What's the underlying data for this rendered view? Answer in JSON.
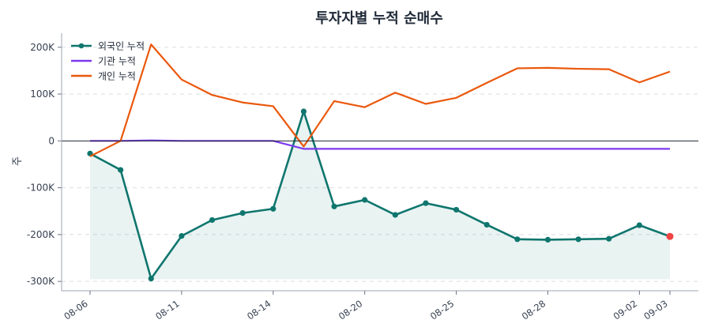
{
  "chart_data": {
    "type": "line",
    "title": "투자자별 누적 순매수",
    "xlabel": "",
    "ylabel": "주",
    "ylim": [
      -320000,
      230000
    ],
    "yticks": [
      200000,
      100000,
      0,
      -100000,
      -200000,
      -300000
    ],
    "ytick_labels": [
      "200K",
      "100K",
      "0",
      "-100K",
      "-200K",
      "-300K"
    ],
    "x": [
      "08-06",
      "08-07",
      "08-08",
      "08-11",
      "08-12",
      "08-13",
      "08-14",
      "08-15",
      "08-18",
      "08-20",
      "08-21",
      "08-22",
      "08-25",
      "08-26",
      "08-27",
      "08-28",
      "08-29",
      "09-01",
      "09-02",
      "09-03"
    ],
    "xtick_labels": [
      {
        "index": 0,
        "label": "08-06"
      },
      {
        "index": 3,
        "label": "08-11"
      },
      {
        "index": 6,
        "label": "08-14"
      },
      {
        "index": 9,
        "label": "08-20"
      },
      {
        "index": 12,
        "label": "08-25"
      },
      {
        "index": 15,
        "label": "08-28"
      },
      {
        "index": 18,
        "label": "09-02"
      },
      {
        "index": 19,
        "label": "09-03"
      }
    ],
    "series": [
      {
        "name": "외국인 누적",
        "color": "#0f766e",
        "markers": true,
        "fill": true,
        "values": [
          -27000,
          -62000,
          -294000,
          -203000,
          -169000,
          -154000,
          -145000,
          63000,
          -140000,
          -126000,
          -158000,
          -133000,
          -147000,
          -179000,
          -210000,
          -211000,
          -210000,
          -209000,
          -180000,
          -204000
        ]
      },
      {
        "name": "기관 누적",
        "color": "#7c3aed",
        "markers": false,
        "fill": false,
        "values": [
          0,
          0,
          1000,
          0,
          0,
          0,
          0,
          -17000,
          -17000,
          -17000,
          -17000,
          -17000,
          -17000,
          -17000,
          -17000,
          -17000,
          -17000,
          -17000,
          -17000,
          -17000
        ]
      },
      {
        "name": "개인 누적",
        "color": "#ea580c",
        "markers": false,
        "fill": false,
        "values": [
          -33000,
          0,
          206000,
          131000,
          98000,
          82000,
          74000,
          -12000,
          85000,
          72000,
          103000,
          79000,
          92000,
          124000,
          155000,
          156000,
          154000,
          153000,
          125000,
          148000
        ]
      }
    ],
    "last_point_color": "#ef4444",
    "legend_position": "top-left",
    "grid": true
  }
}
